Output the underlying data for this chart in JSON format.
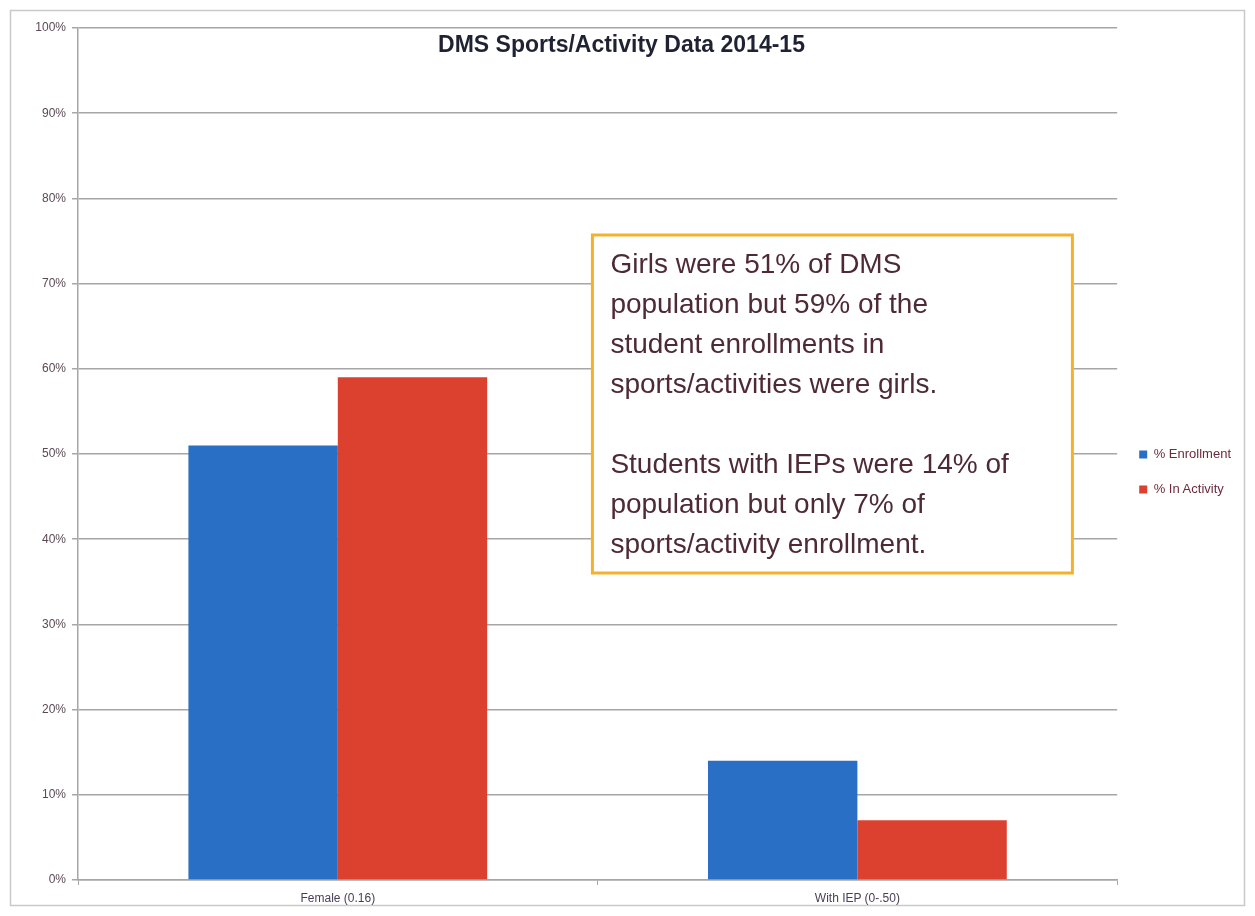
{
  "chart_data": {
    "type": "bar",
    "title": "DMS Sports/Activity Data 2014-15",
    "categories": [
      "Female (0.16)",
      "With IEP (0-.50)"
    ],
    "series": [
      {
        "name": "% Enrollment",
        "color": "#2a6fc6",
        "values": [
          51,
          14
        ]
      },
      {
        "name": "% In Activity",
        "color": "#dc4130",
        "values": [
          59,
          7
        ]
      }
    ],
    "ylim": [
      0,
      100
    ],
    "yticks": [
      {
        "value": 0,
        "label": "0%"
      },
      {
        "value": 10,
        "label": "10%"
      },
      {
        "value": 20,
        "label": "20%"
      },
      {
        "value": 30,
        "label": "30%"
      },
      {
        "value": 40,
        "label": "40%"
      },
      {
        "value": 50,
        "label": "50%"
      },
      {
        "value": 60,
        "label": "60%"
      },
      {
        "value": 70,
        "label": "70%"
      },
      {
        "value": 80,
        "label": "80%"
      },
      {
        "value": 90,
        "label": "90%"
      },
      {
        "value": 100,
        "label": "100%"
      }
    ],
    "grid": "y",
    "legend": "right",
    "annotations": [
      "Girls were 51% of DMS population but 59% of the student enrollments in sports/activities were girls.",
      "Students with IEPs were 14% of population but only 7% of sports/activity enrollment."
    ]
  }
}
